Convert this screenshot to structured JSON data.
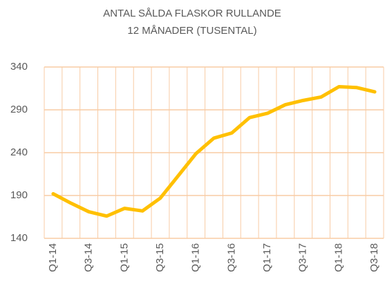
{
  "chart_data": {
    "type": "line",
    "title": [
      "ANTAL SÅLDA FLASKOR RULLANDE",
      "12 MÅNADER (TUSENTAL)"
    ],
    "categories": [
      "Q1-14",
      null,
      "Q3-14",
      null,
      "Q1-15",
      null,
      "Q3-15",
      null,
      "Q1-16",
      null,
      "Q3-16",
      null,
      "Q1-17",
      null,
      "Q3-17",
      null,
      "Q1-18",
      null,
      "Q3-18"
    ],
    "values": [
      192,
      181,
      171,
      166,
      175,
      172,
      187,
      213,
      239,
      257,
      263,
      281,
      286,
      296,
      301,
      305,
      317,
      316,
      311
    ],
    "color": "#ffc000",
    "ylim": [
      140,
      340
    ],
    "yticks": [
      140,
      190,
      240,
      290,
      340
    ],
    "grid": true
  }
}
